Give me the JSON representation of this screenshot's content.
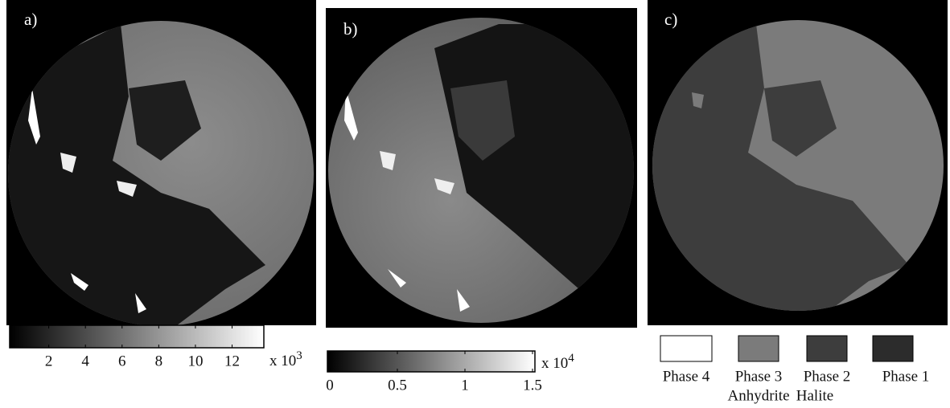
{
  "panels": [
    {
      "label": "a)",
      "colorbar": {
        "lim": [
          0,
          13.6
        ],
        "ticks": [
          2,
          4,
          6,
          8,
          10,
          12
        ],
        "multiplier": {
          "text": "x 10",
          "exponent": "3"
        }
      }
    },
    {
      "label": "b)",
      "colorbar": {
        "lim": [
          0,
          1.5
        ],
        "ticks": [
          0,
          0.5,
          1,
          1.5
        ],
        "multiplier": {
          "text": "x 10",
          "exponent": "4"
        }
      }
    },
    {
      "label": "c)",
      "legend": [
        {
          "label": "Phase 4",
          "color": "#ffffff"
        },
        {
          "label": "Phase 3",
          "sublabel": "Anhydrite",
          "color": "#7b7b7b"
        },
        {
          "label": "Phase 2",
          "sublabel": "Halite",
          "color": "#3d3d3d"
        },
        {
          "label": "Phase 1",
          "color": "#2c2c2c"
        }
      ]
    }
  ]
}
